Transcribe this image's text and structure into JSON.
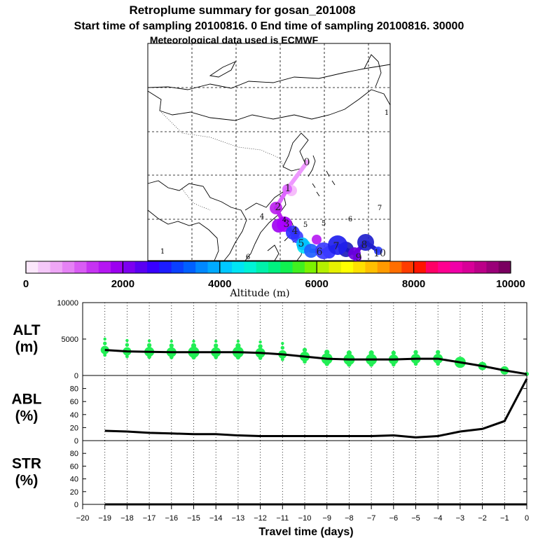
{
  "header": {
    "title": "Retroplume summary for gosan_201008",
    "subtitle": "Start time of sampling 20100816.    0     End time of sampling 20100816. 30000",
    "met": "Meteorological data used is ECMWF"
  },
  "map": {
    "name": "retroplume-trajectory-map",
    "day_labels": [
      {
        "text": "0",
        "color": "#cc66ff"
      },
      {
        "text": "1",
        "color": "#cc44ff"
      },
      {
        "text": "2",
        "color": "#9900cc"
      },
      {
        "text": "3",
        "color": "#aa00ff"
      },
      {
        "text": "4",
        "color": "#1a1aff"
      },
      {
        "text": "5",
        "color": "#00bfff"
      },
      {
        "text": "6",
        "color": "#1e4bff"
      },
      {
        "text": "7",
        "color": "#2222ee"
      },
      {
        "text": "8",
        "color": "#1a1ab8"
      },
      {
        "text": "9",
        "color": "#7a00cc"
      },
      {
        "text": "10",
        "color": "#2d2dff"
      }
    ],
    "side_labels": [
      "4",
      "5",
      "4",
      "5",
      "6",
      "6",
      "7",
      "1",
      "1"
    ]
  },
  "colorbar": {
    "label": "Altitude (m)",
    "ticks": [
      "0",
      "2000",
      "4000",
      "6000",
      "8000",
      "10000"
    ],
    "colors": [
      "#fbe7fb",
      "#f5c8f9",
      "#eea6f6",
      "#e582f5",
      "#d95cf4",
      "#c633f2",
      "#b516f2",
      "#9c00f0",
      "#7d00f0",
      "#5a00f2",
      "#3800ff",
      "#1c1cff",
      "#0a40ff",
      "#0060ff",
      "#0088ff",
      "#00aaff",
      "#00c8ff",
      "#00e4f4",
      "#00f2d6",
      "#00f0aa",
      "#00f080",
      "#10f050",
      "#40f020",
      "#7cf200",
      "#b4f000",
      "#e6f000",
      "#ffff00",
      "#ffe000",
      "#ffbf00",
      "#ff9a00",
      "#ff6e00",
      "#ff3c00",
      "#ff1400",
      "#ff0066",
      "#ff0090",
      "#f000a8",
      "#d80098",
      "#bb0088",
      "#9a0078",
      "#7a0060"
    ]
  },
  "chart_data": [
    {
      "type": "scatter",
      "name": "alt-panel",
      "ylabel": "ALT\n(m)",
      "ylabel_lines": [
        "ALT",
        "(m)"
      ],
      "ylim": [
        0,
        10000
      ],
      "yticks": [
        "0",
        "5000",
        "10000"
      ],
      "x": [
        -19,
        -18,
        -17,
        -16,
        -15,
        -14,
        -13,
        -12,
        -11,
        -10,
        -9,
        -8,
        -7,
        -6,
        -5,
        -4,
        -3,
        -2,
        -1,
        0
      ],
      "line_values": [
        3500,
        3300,
        3250,
        3200,
        3200,
        3200,
        3200,
        3100,
        2900,
        2600,
        2300,
        2200,
        2200,
        2200,
        2300,
        2300,
        1800,
        1300,
        700,
        200
      ],
      "bubble_sizes": [
        6,
        6,
        7,
        7,
        8,
        7,
        8,
        7,
        6,
        7,
        8,
        8,
        8,
        7,
        7,
        7,
        8,
        6,
        6,
        3
      ],
      "color": "#22ee55"
    },
    {
      "type": "line",
      "name": "abl-panel",
      "ylabel_lines": [
        "ABL",
        "(%)"
      ],
      "ylim": [
        0,
        100
      ],
      "yticks": [
        "0",
        "20",
        "40",
        "60",
        "80"
      ],
      "x": [
        -19,
        -18,
        -17,
        -16,
        -15,
        -14,
        -13,
        -12,
        -11,
        -10,
        -9,
        -8,
        -7,
        -6,
        -5,
        -4,
        -3,
        -2,
        -1,
        0
      ],
      "values": [
        15,
        14,
        12,
        11,
        10,
        10,
        8,
        7,
        7,
        7,
        7,
        7,
        7,
        8,
        5,
        7,
        14,
        18,
        30,
        95
      ]
    },
    {
      "type": "line",
      "name": "str-panel",
      "ylabel_lines": [
        "STR",
        "(%)"
      ],
      "ylim": [
        0,
        100
      ],
      "yticks": [
        "0",
        "20",
        "40",
        "60",
        "80"
      ],
      "x": [
        -19,
        -18,
        -17,
        -16,
        -15,
        -14,
        -13,
        -12,
        -11,
        -10,
        -9,
        -8,
        -7,
        -6,
        -5,
        -4,
        -3,
        -2,
        -1,
        0
      ],
      "values": [
        0,
        0,
        0,
        0,
        0,
        0,
        0,
        0,
        0,
        0,
        0,
        0,
        0,
        0,
        0,
        0,
        0,
        0,
        0,
        0
      ]
    }
  ],
  "xaxis": {
    "label": "Travel time (days)",
    "ticks": [
      "−20",
      "−19",
      "−18",
      "−17",
      "−16",
      "−15",
      "−14",
      "−13",
      "−12",
      "−11",
      "−10",
      "−9",
      "−8",
      "−7",
      "−6",
      "−5",
      "−4",
      "−3",
      "−2",
      "−1",
      "0"
    ],
    "range": [
      -20,
      0
    ]
  }
}
